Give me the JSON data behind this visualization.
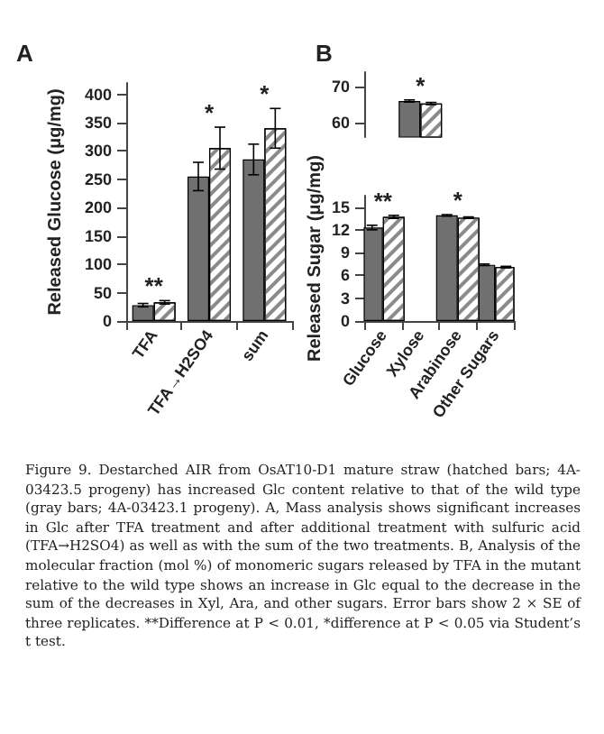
{
  "chart_data": [
    {
      "type": "bar",
      "title": "A",
      "ylabel": "Released Glucose (μg/mg)",
      "categories": [
        "TFA",
        "TFA→H2SO4",
        "sum"
      ],
      "series": [
        {
          "color": "#707070",
          "values": [
            28,
            255,
            285
          ],
          "errors": [
            3,
            25,
            27
          ]
        },
        {
          "color": "#ffffff",
          "values": [
            33,
            305,
            340
          ],
          "errors": [
            3,
            37,
            35
          ]
        }
      ],
      "ylim": [
        0,
        420
      ],
      "yticks": [
        0,
        50,
        100,
        150,
        200,
        250,
        300,
        350,
        400
      ],
      "annotations": [
        {
          "text": "**",
          "x": "TFA",
          "y": 33
        },
        {
          "text": "*",
          "x": "TFA→H2SO4",
          "y": 305
        },
        {
          "text": "*",
          "x": "sum",
          "y": 340
        }
      ]
    },
    {
      "type": "bar",
      "title": "B",
      "categories": [
        "Glucose",
        "Xylose",
        "Arabinose",
        "Other Sugars"
      ],
      "series": [
        {
          "color": "#707070",
          "values": [
            null,
            66,
            null,
            null
          ],
          "errors": [
            null,
            0.3,
            null,
            null
          ]
        },
        {
          "color": "#ffffff",
          "values": [
            null,
            65.3,
            null,
            null
          ],
          "errors": [
            null,
            0.3,
            null,
            null
          ]
        }
      ],
      "ylim": [
        56,
        74
      ],
      "yticks": [
        60,
        70
      ],
      "tick_labels": "y",
      "annotations": [
        {
          "text": "*",
          "x": "Xylose",
          "y": 66
        }
      ]
    },
    {
      "type": "bar",
      "ylabel": "Released Sugar (μg/mg)",
      "categories": [
        "Glucose",
        "Xylose",
        "Arabinose",
        "Other Sugars"
      ],
      "series": [
        {
          "color": "#707070",
          "values": [
            12.3,
            null,
            13.9,
            7.4
          ],
          "errors": [
            0.3,
            null,
            0.1,
            0.1
          ]
        },
        {
          "color": "#ffffff",
          "values": [
            13.7,
            null,
            13.6,
            7.1
          ],
          "errors": [
            0.2,
            null,
            0.1,
            0.1
          ]
        }
      ],
      "ylim": [
        0,
        16.5
      ],
      "yticks": [
        0,
        3,
        6,
        9,
        12,
        15
      ],
      "annotations": [
        {
          "text": "**",
          "x": "Glucose",
          "y": 13.7
        },
        {
          "text": "*",
          "x": "Arabinose",
          "y": 13.9
        }
      ]
    },
    {
      "type": "other",
      "annotations": [
        "Figure 9. Destarched AIR from OsAT10-D1 mature straw (hatched bars; 4A-03423.5 progeny) has increased Glc content relative to that of the wild type (gray bars; 4A-03423.1 progeny). A, Mass analysis shows significant increases in Glc after TFA treatment and after additional treatment with sulfuric acid (TFA→H2SO4) as well as with the sum of the two treatments. B, Analysis of the molecular fraction (mol %) of monomeric sugars released by TFA in the mutant relative to the wild type shows an increase in Glc equal to the decrease in the sum of the decreases in Xyl, Ara, and other sugars. Error bars show 2 × SE of three replicates. **Difference at P < 0.01, *difference at P < 0.05 via Student’s t test."
      ]
    }
  ]
}
